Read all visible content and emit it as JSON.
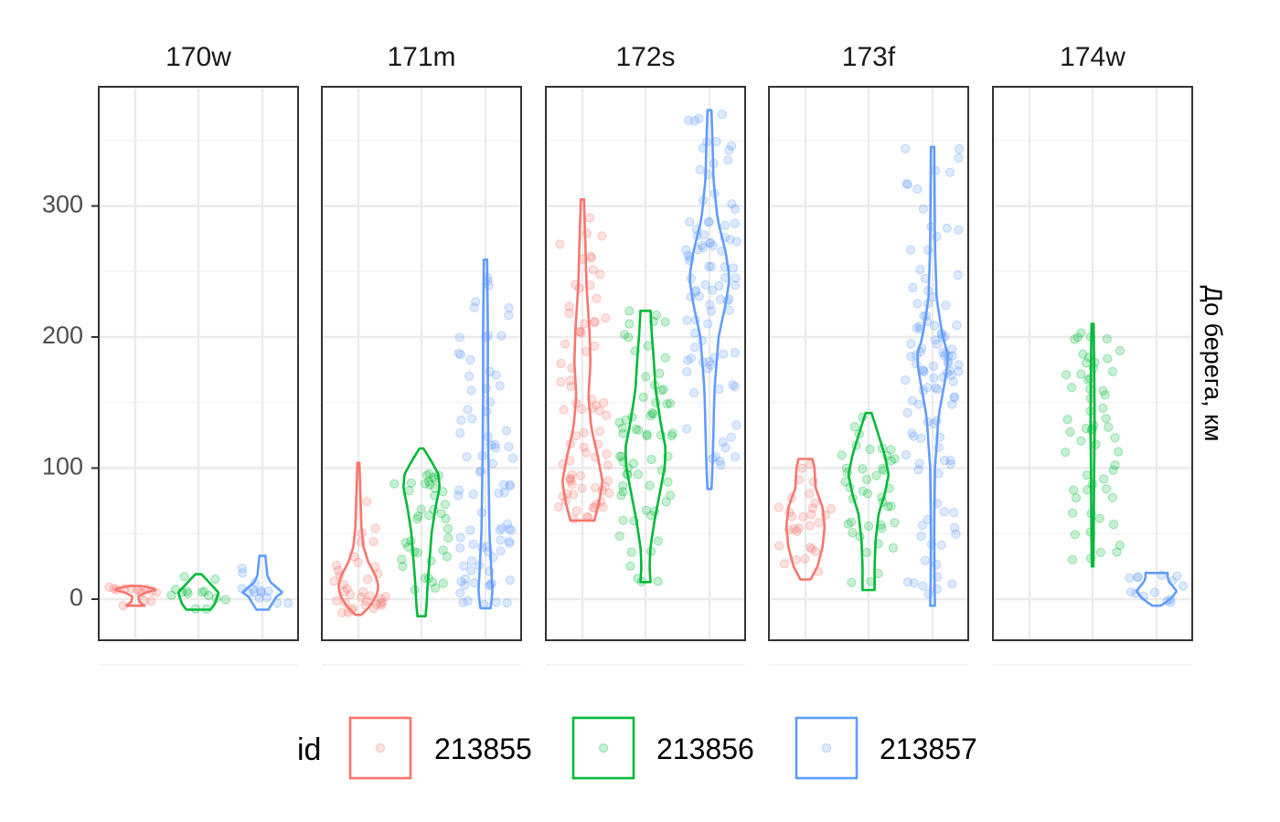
{
  "chart_data": {
    "type": "violin",
    "ylabel": "До берега, км",
    "y_ticks": [
      "0",
      "100",
      "200",
      "300"
    ],
    "ylim": [
      -30,
      390
    ],
    "grid": true,
    "legend_position": "bottom",
    "legend_title": "id",
    "series": [
      {
        "name": "213855",
        "color": "#F8766D"
      },
      {
        "name": "213856",
        "color": "#00BA38"
      },
      {
        "name": "213857",
        "color": "#619CFF"
      }
    ],
    "panels": [
      {
        "label": "170w",
        "violins": [
          {
            "min": -5,
            "max": 10,
            "profile": [
              [
                -5,
                0.45
              ],
              [
                -2,
                0.2
              ],
              [
                2,
                0.15
              ],
              [
                5,
                0.5
              ],
              [
                7,
                1.0
              ],
              [
                8,
                0.95
              ],
              [
                10,
                0.3
              ]
            ]
          },
          {
            "min": -8,
            "max": 19,
            "profile": [
              [
                -8,
                0.6
              ],
              [
                -4,
                0.8
              ],
              [
                0,
                0.9
              ],
              [
                5,
                1.0
              ],
              [
                10,
                0.7
              ],
              [
                15,
                0.4
              ],
              [
                19,
                0.15
              ]
            ]
          },
          {
            "min": -8,
            "max": 33,
            "profile": [
              [
                -8,
                0.3
              ],
              [
                -3,
                0.5
              ],
              [
                2,
                0.7
              ],
              [
                5,
                1.0
              ],
              [
                9,
                0.7
              ],
              [
                13,
                0.4
              ],
              [
                18,
                0.25
              ],
              [
                25,
                0.2
              ],
              [
                33,
                0.15
              ]
            ]
          }
        ]
      },
      {
        "label": "171m",
        "violins": [
          {
            "min": -12,
            "max": 104,
            "profile": [
              [
                -12,
                0.15
              ],
              [
                -5,
                0.6
              ],
              [
                3,
                0.9
              ],
              [
                10,
                1.0
              ],
              [
                18,
                0.85
              ],
              [
                28,
                0.5
              ],
              [
                40,
                0.25
              ],
              [
                55,
                0.15
              ],
              [
                70,
                0.12
              ],
              [
                90,
                0.08
              ],
              [
                104,
                0.05
              ]
            ]
          },
          {
            "min": -13,
            "max": 115,
            "profile": [
              [
                -13,
                0.2
              ],
              [
                -5,
                0.25
              ],
              [
                10,
                0.3
              ],
              [
                30,
                0.4
              ],
              [
                50,
                0.5
              ],
              [
                70,
                0.7
              ],
              [
                85,
                0.9
              ],
              [
                95,
                0.85
              ],
              [
                105,
                0.5
              ],
              [
                115,
                0.1
              ]
            ]
          },
          {
            "min": -7,
            "max": 259,
            "profile": [
              [
                -7,
                0.25
              ],
              [
                5,
                0.35
              ],
              [
                20,
                0.3
              ],
              [
                50,
                0.2
              ],
              [
                100,
                0.15
              ],
              [
                150,
                0.12
              ],
              [
                200,
                0.12
              ],
              [
                230,
                0.1
              ],
              [
                259,
                0.08
              ]
            ]
          }
        ]
      },
      {
        "label": "172s",
        "violins": [
          {
            "min": 60,
            "max": 305,
            "profile": [
              [
                60,
                0.6
              ],
              [
                75,
                0.85
              ],
              [
                90,
                1.0
              ],
              [
                110,
                0.75
              ],
              [
                130,
                0.45
              ],
              [
                155,
                0.3
              ],
              [
                180,
                0.4
              ],
              [
                205,
                0.35
              ],
              [
                240,
                0.2
              ],
              [
                270,
                0.15
              ],
              [
                305,
                0.08
              ]
            ]
          },
          {
            "min": 13,
            "max": 220,
            "profile": [
              [
                13,
                0.25
              ],
              [
                25,
                0.2
              ],
              [
                40,
                0.25
              ],
              [
                60,
                0.45
              ],
              [
                80,
                0.7
              ],
              [
                100,
                0.95
              ],
              [
                115,
                1.0
              ],
              [
                135,
                0.75
              ],
              [
                160,
                0.5
              ],
              [
                185,
                0.4
              ],
              [
                205,
                0.3
              ],
              [
                220,
                0.25
              ]
            ]
          },
          {
            "min": 84,
            "max": 373,
            "profile": [
              [
                84,
                0.1
              ],
              [
                100,
                0.15
              ],
              [
                130,
                0.2
              ],
              [
                160,
                0.25
              ],
              [
                200,
                0.45
              ],
              [
                225,
                0.8
              ],
              [
                245,
                1.0
              ],
              [
                265,
                0.8
              ],
              [
                290,
                0.4
              ],
              [
                320,
                0.2
              ],
              [
                350,
                0.15
              ],
              [
                373,
                0.1
              ]
            ]
          }
        ]
      },
      {
        "label": "173f",
        "violins": [
          {
            "min": 15,
            "max": 107,
            "profile": [
              [
                15,
                0.25
              ],
              [
                25,
                0.6
              ],
              [
                40,
                0.85
              ],
              [
                55,
                0.95
              ],
              [
                70,
                0.85
              ],
              [
                85,
                0.5
              ],
              [
                100,
                0.45
              ],
              [
                107,
                0.35
              ]
            ]
          },
          {
            "min": 7,
            "max": 142,
            "profile": [
              [
                7,
                0.3
              ],
              [
                25,
                0.3
              ],
              [
                45,
                0.35
              ],
              [
                65,
                0.5
              ],
              [
                80,
                0.8
              ],
              [
                95,
                1.0
              ],
              [
                110,
                0.8
              ],
              [
                125,
                0.5
              ],
              [
                142,
                0.15
              ]
            ]
          },
          {
            "min": -5,
            "max": 345,
            "profile": [
              [
                -5,
                0.12
              ],
              [
                10,
                0.1
              ],
              [
                50,
                0.08
              ],
              [
                100,
                0.12
              ],
              [
                140,
                0.3
              ],
              [
                165,
                0.6
              ],
              [
                185,
                0.8
              ],
              [
                200,
                0.5
              ],
              [
                230,
                0.2
              ],
              [
                270,
                0.12
              ],
              [
                310,
                0.1
              ],
              [
                345,
                0.08
              ]
            ]
          }
        ]
      },
      {
        "label": "174w",
        "violins": [
          null,
          {
            "min": 25,
            "max": 210,
            "profile": [
              [
                25,
                0.04
              ],
              [
                60,
                0.06
              ],
              [
                100,
                0.08
              ],
              [
                130,
                0.1
              ],
              [
                160,
                0.09
              ],
              [
                190,
                0.07
              ],
              [
                210,
                0.05
              ]
            ]
          },
          {
            "min": -5,
            "max": 20,
            "profile": [
              [
                -5,
                0.2
              ],
              [
                -2,
                0.5
              ],
              [
                2,
                0.8
              ],
              [
                6,
                1.0
              ],
              [
                10,
                0.8
              ],
              [
                14,
                0.6
              ],
              [
                17,
                0.55
              ],
              [
                20,
                0.55
              ]
            ]
          }
        ]
      }
    ]
  }
}
